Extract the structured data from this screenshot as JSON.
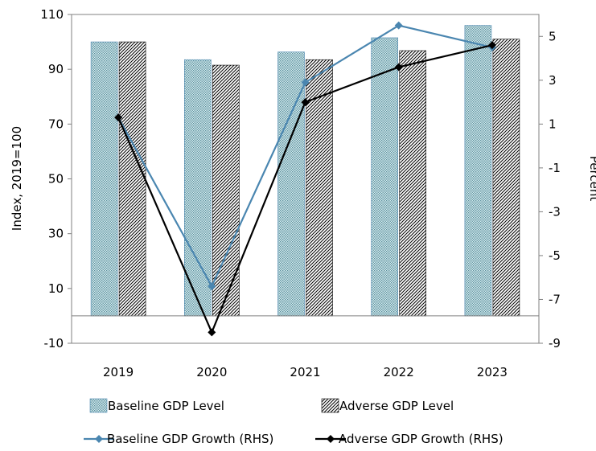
{
  "chart_data": {
    "type": "bar",
    "categories": [
      "2019",
      "2020",
      "2021",
      "2022",
      "2023"
    ],
    "left_axis": {
      "ylabel": "Index, 2019=100",
      "ylim": [
        -10,
        110
      ],
      "ticks": [
        "110",
        "90",
        "70",
        "50",
        "30",
        "10",
        "-10"
      ]
    },
    "right_axis": {
      "ylabel": "Percent",
      "ylim": [
        -9,
        6
      ],
      "ticks": [
        "5",
        "3",
        "1",
        "-1",
        "-3",
        "-5",
        "-7",
        "-9"
      ]
    },
    "series": [
      {
        "name": "Baseline GDP Level",
        "kind": "bar",
        "axis": "left",
        "pattern": "dots",
        "color": "#bfe0e6",
        "values": [
          100,
          93.5,
          96.3,
          101.5,
          106
        ]
      },
      {
        "name": "Adverse GDP Level",
        "kind": "bar",
        "axis": "left",
        "pattern": "diagonal-hatch",
        "color": "#000000",
        "values": [
          100,
          91.5,
          93.5,
          96.8,
          101
        ]
      },
      {
        "name": "Baseline GDP Growth (RHS)",
        "kind": "line",
        "axis": "right",
        "marker": "diamond",
        "color": "#4a86b0",
        "values": [
          1.3,
          -6.4,
          2.9,
          5.5,
          4.5
        ]
      },
      {
        "name": "Adverse GDP Growth (RHS)",
        "kind": "line",
        "axis": "right",
        "marker": "diamond",
        "color": "#000000",
        "values": [
          1.3,
          -8.5,
          2.0,
          3.6,
          4.6
        ]
      }
    ],
    "grid": false,
    "legend_position": "bottom"
  }
}
